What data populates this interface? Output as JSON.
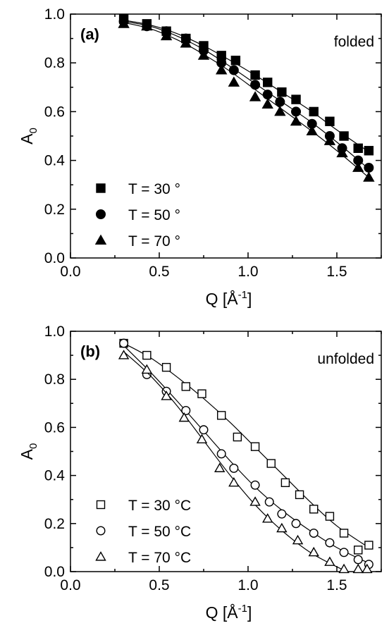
{
  "chart_data": [
    {
      "type": "scatter",
      "panel_label": "(a)",
      "corner_label": "folded",
      "xlabel": "Q [Å",
      "xlabel_sup": "-1",
      "xlabel_close": "]",
      "ylabel": "A",
      "ylabel_sub": "0",
      "xlim": [
        0.0,
        1.75
      ],
      "ylim": [
        0.0,
        1.0
      ],
      "xticks": [
        "0.0",
        "0.5",
        "1.0",
        "1.5"
      ],
      "yticks": [
        "0.0",
        "0.2",
        "0.4",
        "0.6",
        "0.8",
        "1.0"
      ],
      "marker_fill": "filled",
      "legend_position": "bottom-left",
      "series": [
        {
          "name": "T = 30 °",
          "marker": "square",
          "x": [
            0.3,
            0.43,
            0.54,
            0.65,
            0.75,
            0.85,
            0.93,
            1.04,
            1.11,
            1.19,
            1.27,
            1.37,
            1.46,
            1.54,
            1.62,
            1.68
          ],
          "y": [
            0.98,
            0.96,
            0.93,
            0.9,
            0.87,
            0.83,
            0.81,
            0.75,
            0.72,
            0.68,
            0.65,
            0.6,
            0.56,
            0.5,
            0.45,
            0.44
          ],
          "fit": [
            [
              0.3,
              0.975
            ],
            [
              0.45,
              0.955
            ],
            [
              0.6,
              0.92
            ],
            [
              0.75,
              0.87
            ],
            [
              0.9,
              0.81
            ],
            [
              1.05,
              0.745
            ],
            [
              1.2,
              0.675
            ],
            [
              1.35,
              0.605
            ],
            [
              1.5,
              0.525
            ],
            [
              1.68,
              0.435
            ]
          ]
        },
        {
          "name": "T = 50 °",
          "marker": "circle",
          "x": [
            0.3,
            0.43,
            0.54,
            0.65,
            0.75,
            0.85,
            0.92,
            1.04,
            1.11,
            1.18,
            1.27,
            1.36,
            1.46,
            1.53,
            1.62,
            1.68
          ],
          "y": [
            0.97,
            0.95,
            0.93,
            0.9,
            0.85,
            0.8,
            0.77,
            0.71,
            0.67,
            0.64,
            0.6,
            0.55,
            0.5,
            0.45,
            0.4,
            0.37
          ],
          "fit": [
            [
              0.3,
              0.97
            ],
            [
              0.45,
              0.95
            ],
            [
              0.6,
              0.91
            ],
            [
              0.75,
              0.855
            ],
            [
              0.9,
              0.785
            ],
            [
              1.05,
              0.71
            ],
            [
              1.2,
              0.635
            ],
            [
              1.35,
              0.56
            ],
            [
              1.5,
              0.475
            ],
            [
              1.68,
              0.365
            ]
          ]
        },
        {
          "name": "T = 70 °",
          "marker": "triangle",
          "x": [
            0.3,
            0.43,
            0.54,
            0.65,
            0.75,
            0.85,
            0.92,
            1.04,
            1.11,
            1.18,
            1.27,
            1.36,
            1.46,
            1.53,
            1.62,
            1.68
          ],
          "y": [
            0.96,
            0.95,
            0.91,
            0.88,
            0.83,
            0.77,
            0.72,
            0.66,
            0.63,
            0.6,
            0.56,
            0.52,
            0.48,
            0.43,
            0.37,
            0.33
          ],
          "fit": [
            [
              0.3,
              0.965
            ],
            [
              0.45,
              0.94
            ],
            [
              0.6,
              0.895
            ],
            [
              0.75,
              0.835
            ],
            [
              0.9,
              0.765
            ],
            [
              1.05,
              0.685
            ],
            [
              1.2,
              0.605
            ],
            [
              1.35,
              0.525
            ],
            [
              1.5,
              0.44
            ],
            [
              1.68,
              0.33
            ]
          ]
        }
      ]
    },
    {
      "type": "scatter",
      "panel_label": "(b)",
      "corner_label": "unfolded",
      "xlabel": "Q [Å",
      "xlabel_sup": "-1",
      "xlabel_close": "]",
      "ylabel": "A",
      "ylabel_sub": "0",
      "xlim": [
        0.0,
        1.75
      ],
      "ylim": [
        0.0,
        1.0
      ],
      "xticks": [
        "0.0",
        "0.5",
        "1.0",
        "1.5"
      ],
      "yticks": [
        "0.0",
        "0.2",
        "0.4",
        "0.6",
        "0.8",
        "1.0"
      ],
      "marker_fill": "open",
      "legend_position": "bottom-left",
      "series": [
        {
          "name": "T = 30 °C",
          "marker": "square",
          "x": [
            0.3,
            0.43,
            0.54,
            0.65,
            0.74,
            0.85,
            0.94,
            1.04,
            1.13,
            1.21,
            1.29,
            1.37,
            1.46,
            1.54,
            1.62,
            1.68
          ],
          "y": [
            0.95,
            0.9,
            0.85,
            0.77,
            0.74,
            0.65,
            0.56,
            0.52,
            0.45,
            0.37,
            0.32,
            0.26,
            0.23,
            0.16,
            0.09,
            0.11
          ],
          "fit": [
            [
              0.3,
              0.95
            ],
            [
              0.45,
              0.89
            ],
            [
              0.6,
              0.81
            ],
            [
              0.75,
              0.72
            ],
            [
              0.9,
              0.62
            ],
            [
              1.05,
              0.51
            ],
            [
              1.2,
              0.4
            ],
            [
              1.35,
              0.29
            ],
            [
              1.5,
              0.19
            ],
            [
              1.68,
              0.1
            ]
          ]
        },
        {
          "name": "T = 50 °C",
          "marker": "circle",
          "x": [
            0.3,
            0.43,
            0.54,
            0.65,
            0.75,
            0.85,
            0.92,
            1.04,
            1.12,
            1.19,
            1.27,
            1.37,
            1.46,
            1.54,
            1.62,
            1.68
          ],
          "y": [
            0.95,
            0.82,
            0.75,
            0.67,
            0.59,
            0.49,
            0.43,
            0.36,
            0.29,
            0.24,
            0.2,
            0.16,
            0.12,
            0.08,
            0.05,
            0.03
          ],
          "fit": [
            [
              0.3,
              0.94
            ],
            [
              0.45,
              0.83
            ],
            [
              0.6,
              0.71
            ],
            [
              0.75,
              0.585
            ],
            [
              0.9,
              0.46
            ],
            [
              1.05,
              0.345
            ],
            [
              1.2,
              0.25
            ],
            [
              1.35,
              0.17
            ],
            [
              1.5,
              0.1
            ],
            [
              1.68,
              0.035
            ]
          ]
        },
        {
          "name": "T = 70 °C",
          "marker": "triangle",
          "x": [
            0.3,
            0.43,
            0.54,
            0.64,
            0.74,
            0.84,
            0.92,
            1.04,
            1.11,
            1.19,
            1.28,
            1.37,
            1.46,
            1.54,
            1.62,
            1.67
          ],
          "y": [
            0.9,
            0.84,
            0.73,
            0.64,
            0.55,
            0.43,
            0.37,
            0.29,
            0.22,
            0.18,
            0.13,
            0.08,
            0.04,
            0.01,
            0.01,
            0.01
          ],
          "fit": [
            [
              0.3,
              0.915
            ],
            [
              0.45,
              0.815
            ],
            [
              0.6,
              0.69
            ],
            [
              0.75,
              0.545
            ],
            [
              0.9,
              0.4
            ],
            [
              1.05,
              0.27
            ],
            [
              1.2,
              0.165
            ],
            [
              1.35,
              0.08
            ],
            [
              1.5,
              0.02
            ],
            [
              1.56,
              0.0
            ]
          ]
        }
      ]
    }
  ]
}
